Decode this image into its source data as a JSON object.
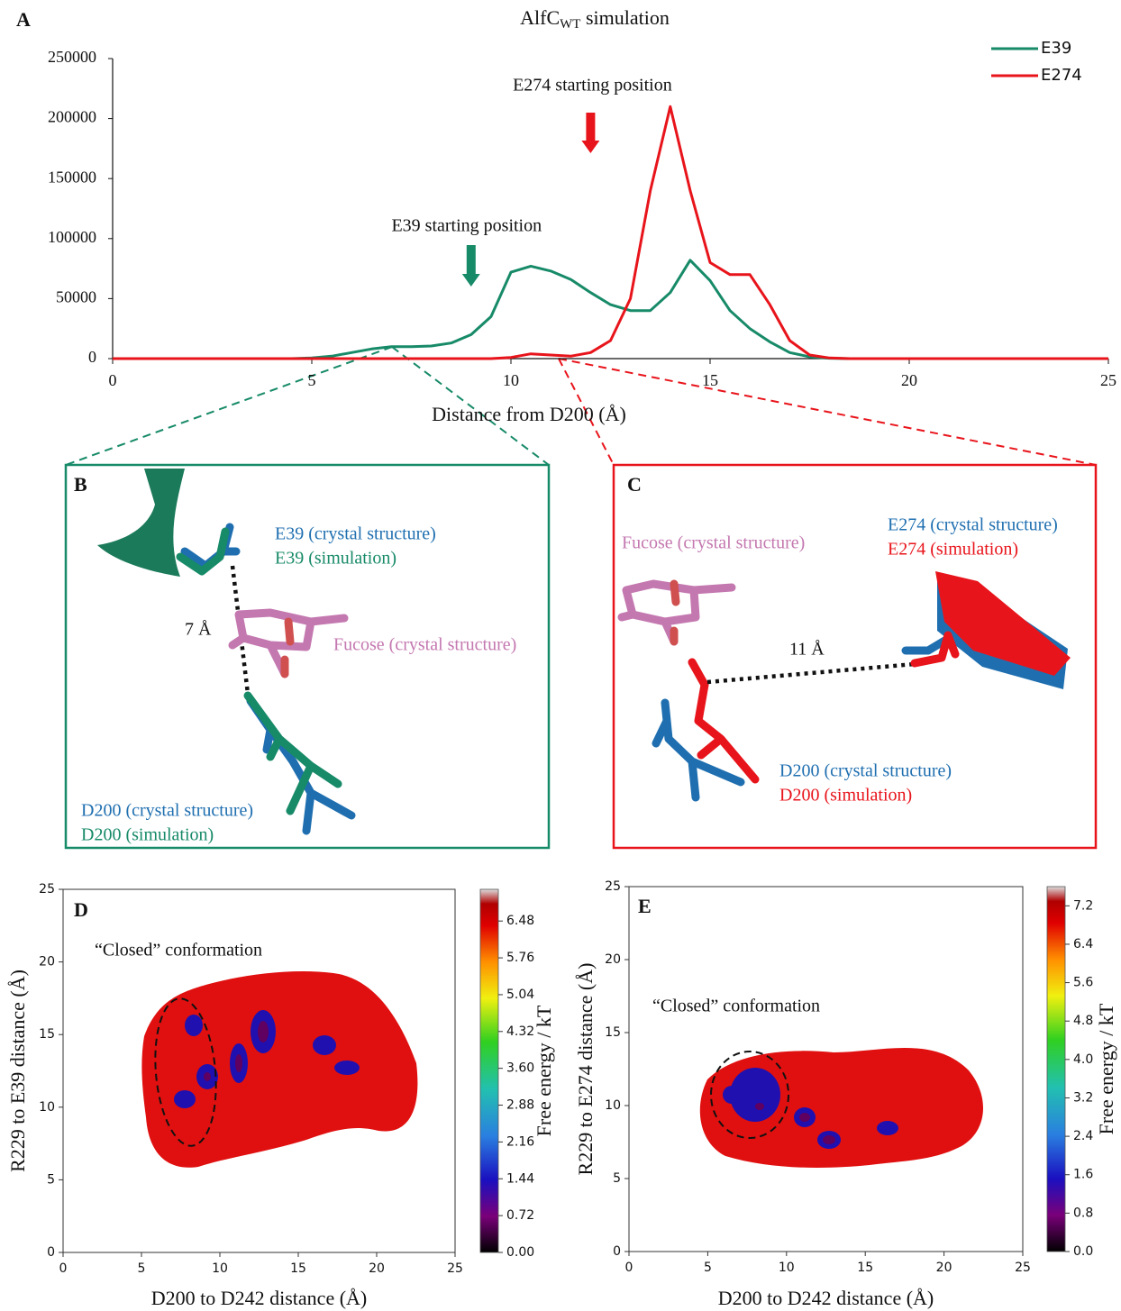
{
  "chart_data": [
    {
      "type": "line",
      "panel": "A",
      "title": {
        "text": "AlfC",
        "subscript": "WT",
        "suffix": " simulation"
      },
      "x_label": "Distance from D200 (Å)",
      "x": [
        0,
        0.5,
        1,
        1.5,
        2,
        2.5,
        3,
        3.5,
        4,
        4.5,
        5,
        5.5,
        6,
        6.5,
        7,
        7.5,
        8,
        8.5,
        9,
        9.5,
        10,
        10.5,
        11,
        11.5,
        12,
        12.5,
        13,
        13.5,
        14,
        14.5,
        15,
        15.5,
        16,
        16.5,
        17,
        17.5,
        18,
        18.5,
        19,
        19.5,
        20,
        20.5,
        21,
        21.5,
        22,
        22.5,
        23,
        23.5,
        24,
        24.5,
        25
      ],
      "series": [
        {
          "name": "E39",
          "color": "#178a68",
          "values": [
            0,
            0,
            0,
            0,
            0,
            0,
            0,
            0,
            0,
            0,
            500,
            2000,
            5000,
            8000,
            10000,
            10000,
            10500,
            13000,
            20000,
            35000,
            72000,
            77000,
            73000,
            66000,
            55000,
            45000,
            40000,
            40000,
            55000,
            82000,
            65000,
            40000,
            25000,
            14000,
            5000,
            1500,
            300,
            0,
            0,
            0,
            0,
            0,
            0,
            0,
            0,
            0,
            0,
            0,
            0,
            0,
            0
          ]
        },
        {
          "name": "E274",
          "color": "#e8141b",
          "values": [
            0,
            0,
            0,
            0,
            0,
            0,
            0,
            0,
            0,
            0,
            0,
            0,
            0,
            0,
            0,
            0,
            0,
            0,
            0,
            0,
            1000,
            4000,
            3000,
            2000,
            5000,
            15000,
            50000,
            140000,
            210000,
            140000,
            80000,
            70000,
            70000,
            45000,
            15000,
            3000,
            500,
            0,
            0,
            0,
            0,
            0,
            0,
            0,
            0,
            0,
            0,
            0,
            0,
            0,
            0
          ]
        }
      ],
      "xlim": [
        0,
        25
      ],
      "xticks": [
        0,
        5,
        10,
        15,
        20,
        25
      ],
      "ylim": [
        0,
        250000
      ],
      "yticks": [
        0,
        50000,
        100000,
        150000,
        200000,
        250000
      ],
      "legend": "upper right",
      "annotations": [
        {
          "text": "E274 starting position",
          "x": 12,
          "color": "#e8141b"
        },
        {
          "text": "E39 starting position",
          "x": 9,
          "color": "#178a68"
        }
      ]
    },
    {
      "type": "heatmap",
      "panel": "D",
      "x_label": "D200 to D242 distance (Å)",
      "y_label": "R229 to E39 distance (Å)",
      "xlim": [
        0,
        25
      ],
      "xticks": [
        0,
        5,
        10,
        15,
        20,
        25
      ],
      "ylim": [
        0,
        25
      ],
      "yticks": [
        0,
        5,
        10,
        15,
        20,
        25
      ],
      "annotation": "“Closed” conformation",
      "colorbar": {
        "label": "Free energy / kT",
        "lim": [
          0,
          7.1
        ],
        "ticks": [
          {
            "value": 0,
            "label": "0.00"
          },
          0.72,
          1.44,
          2.16,
          2.88,
          {
            "value": 3.6,
            "label": "3.60"
          },
          4.32,
          5.04,
          5.76,
          6.48
        ]
      }
    },
    {
      "type": "heatmap",
      "panel": "E",
      "x_label": "D200 to D242 distance (Å)",
      "y_label": "R229 to E274 distance (Å)",
      "xlim": [
        0,
        25
      ],
      "xticks": [
        0,
        5,
        10,
        15,
        20,
        25
      ],
      "ylim": [
        0,
        25
      ],
      "yticks": [
        0,
        5,
        10,
        15,
        20,
        25
      ],
      "annotation": "“Closed” conformation",
      "colorbar": {
        "label": "Free energy / kT",
        "lim": [
          0,
          7.6
        ],
        "ticks": [
          {
            "value": 0,
            "label": "0.0"
          },
          0.8,
          1.6,
          2.4,
          3.2,
          {
            "value": 4,
            "label": "4.0"
          },
          4.8,
          5.6,
          6.4,
          7.2
        ]
      }
    }
  ],
  "panels": [
    {
      "letter": "B",
      "labels": [
        "E39 (crystal structure)",
        "E39 (simulation)",
        "Fucose (crystal structure)",
        "D200 (crystal structure)",
        "D200 (simulation)"
      ],
      "distance": "7 Å"
    },
    {
      "letter": "C",
      "labels": [
        "Fucose (crystal structure)",
        "E274 (crystal structure)",
        "E274 (simulation)",
        "D200 (crystal structure)",
        "D200 (simulation)"
      ],
      "distance": "11 Å"
    }
  ]
}
